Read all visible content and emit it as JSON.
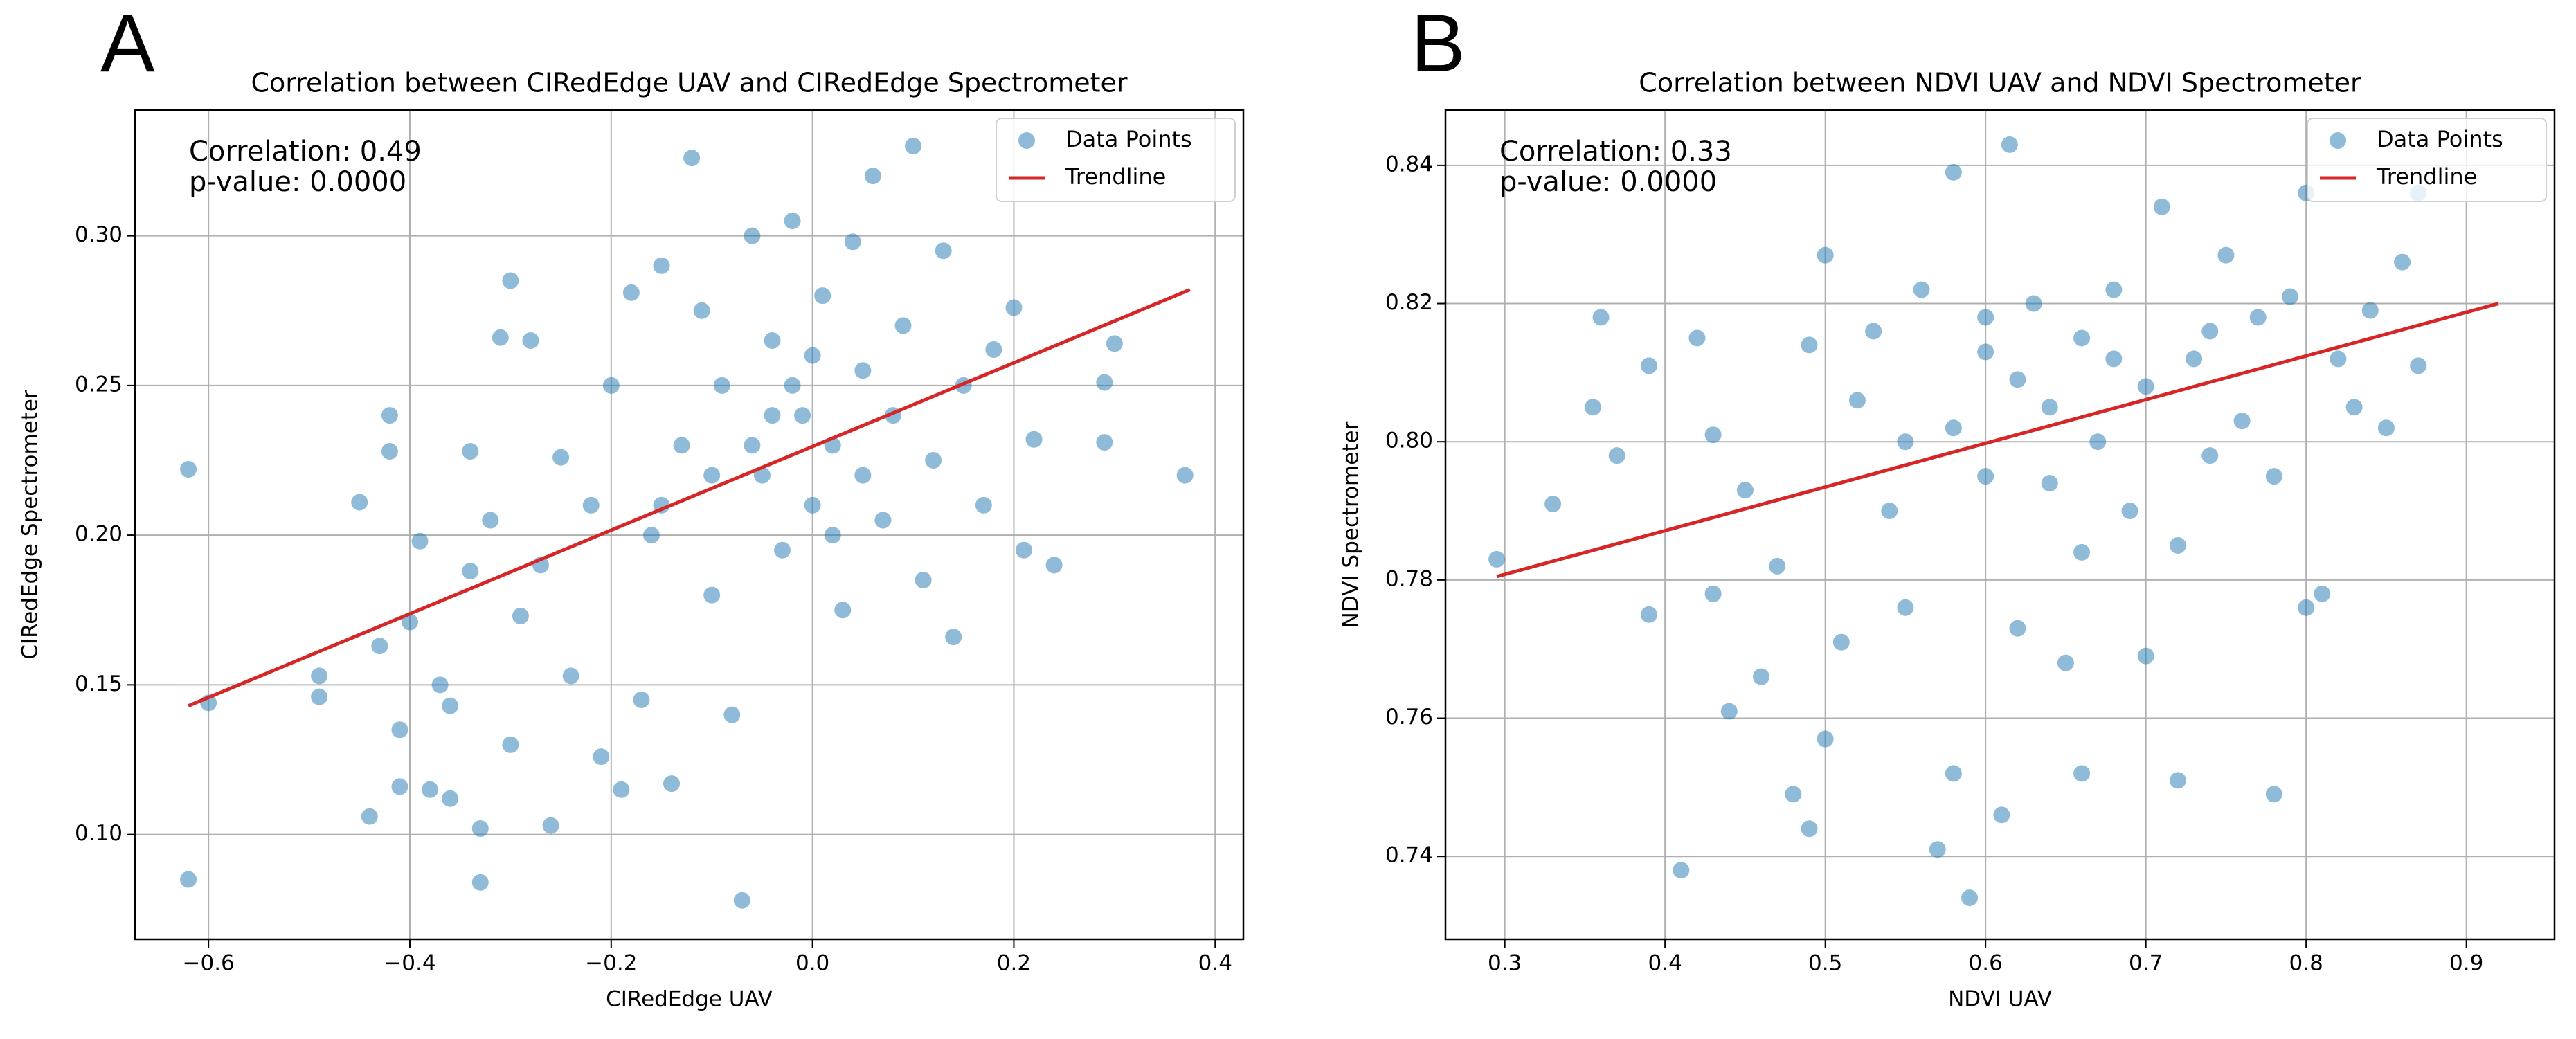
{
  "chart_data": [
    {
      "type": "scatter",
      "panel_label": "A",
      "title": "Correlation between CIRedEdge UAV and CIRedEdge Spectrometer",
      "x_label": "CIRedEdge UAV",
      "y_label": "CIRedEdge Spectrometer",
      "annotations": [
        "Correlation: 0.49",
        "p-value: 0.0000"
      ],
      "xlim": [
        -0.673,
        0.428
      ],
      "ylim": [
        0.065,
        0.342
      ],
      "xticks": [
        {
          "value": -0.6,
          "label": "−0.6"
        },
        {
          "value": -0.4,
          "label": "−0.4"
        },
        {
          "value": -0.2,
          "label": "−0.2"
        },
        {
          "value": 0,
          "label": "0.0"
        },
        0.2,
        0.4
      ],
      "yticks": [
        {
          "value": 0.1,
          "label": "0.10"
        },
        0.15,
        {
          "value": 0.2,
          "label": "0.20"
        },
        0.25,
        {
          "value": 0.3,
          "label": "0.30"
        }
      ],
      "grid": true,
      "legend": "upper right",
      "series": [
        {
          "name": "Data Points",
          "type": "scatter",
          "color": "#1f77b4",
          "x": [
            -0.62,
            -0.62,
            -0.6,
            -0.49,
            -0.49,
            -0.45,
            -0.44,
            -0.43,
            -0.42,
            -0.42,
            -0.41,
            -0.41,
            -0.4,
            -0.39,
            -0.38,
            -0.37,
            -0.36,
            -0.36,
            -0.34,
            -0.34,
            -0.33,
            -0.33,
            -0.32,
            -0.31,
            -0.3,
            -0.3,
            -0.29,
            -0.28,
            -0.27,
            -0.26,
            -0.25,
            -0.24,
            -0.22,
            -0.21,
            -0.2,
            -0.19,
            -0.18,
            -0.17,
            -0.16,
            -0.15,
            -0.14,
            -0.13,
            -0.12,
            -0.11,
            -0.1,
            -0.09,
            -0.08,
            -0.07,
            -0.06,
            -0.05,
            -0.04,
            -0.03,
            -0.02,
            -0.01,
            0.0,
            0.01,
            0.02,
            0.03,
            0.04,
            0.05,
            0.06,
            0.07,
            0.08,
            0.09,
            0.1,
            0.11,
            0.12,
            0.13,
            0.14,
            0.15,
            0.17,
            0.18,
            0.2,
            0.21,
            0.22,
            0.24,
            0.29,
            0.29,
            0.3,
            0.37,
            -0.02,
            -0.06,
            0.0,
            -0.1,
            0.05,
            -0.15,
            0.02,
            -0.04
          ],
          "values": [
            0.085,
            0.222,
            0.144,
            0.146,
            0.153,
            0.211,
            0.106,
            0.163,
            0.24,
            0.228,
            0.135,
            0.116,
            0.171,
            0.198,
            0.115,
            0.15,
            0.143,
            0.112,
            0.228,
            0.188,
            0.084,
            0.102,
            0.205,
            0.266,
            0.285,
            0.13,
            0.173,
            0.265,
            0.19,
            0.103,
            0.226,
            0.153,
            0.21,
            0.126,
            0.25,
            0.115,
            0.281,
            0.145,
            0.2,
            0.29,
            0.117,
            0.23,
            0.326,
            0.275,
            0.18,
            0.25,
            0.14,
            0.078,
            0.3,
            0.22,
            0.265,
            0.195,
            0.305,
            0.24,
            0.21,
            0.28,
            0.23,
            0.175,
            0.298,
            0.255,
            0.32,
            0.205,
            0.24,
            0.27,
            0.33,
            0.185,
            0.225,
            0.295,
            0.166,
            0.25,
            0.21,
            0.262,
            0.276,
            0.195,
            0.232,
            0.19,
            0.251,
            0.231,
            0.264,
            0.22,
            0.25,
            0.23,
            0.26,
            0.22,
            0.22,
            0.21,
            0.2,
            0.24
          ]
        },
        {
          "name": "Trendline",
          "type": "line",
          "color": "#d62728",
          "x": [
            -0.62,
            0.375
          ],
          "values": [
            0.143,
            0.282
          ]
        }
      ]
    },
    {
      "type": "scatter",
      "panel_label": "B",
      "title": "Correlation between NDVI UAV and NDVI Spectrometer",
      "x_label": "NDVI UAV",
      "y_label": "NDVI Spectrometer",
      "annotations": [
        "Correlation: 0.33",
        "p-value: 0.0000"
      ],
      "xlim": [
        0.263,
        0.955
      ],
      "ylim": [
        0.728,
        0.848
      ],
      "xticks": [
        0.3,
        0.4,
        0.5,
        0.6,
        0.7,
        0.8,
        0.9
      ],
      "yticks": [
        0.74,
        0.76,
        0.78,
        {
          "value": 0.8,
          "label": "0.80"
        },
        0.82,
        0.84
      ],
      "grid": true,
      "legend": "upper right",
      "series": [
        {
          "name": "Data Points",
          "type": "scatter",
          "color": "#1f77b4",
          "x": [
            0.295,
            0.33,
            0.355,
            0.36,
            0.37,
            0.39,
            0.39,
            0.41,
            0.42,
            0.43,
            0.43,
            0.44,
            0.45,
            0.46,
            0.47,
            0.48,
            0.49,
            0.49,
            0.5,
            0.5,
            0.51,
            0.52,
            0.53,
            0.54,
            0.55,
            0.56,
            0.57,
            0.58,
            0.58,
            0.59,
            0.6,
            0.6,
            0.61,
            0.615,
            0.62,
            0.63,
            0.64,
            0.65,
            0.66,
            0.66,
            0.67,
            0.68,
            0.69,
            0.7,
            0.7,
            0.71,
            0.72,
            0.72,
            0.73,
            0.74,
            0.75,
            0.76,
            0.77,
            0.78,
            0.78,
            0.79,
            0.8,
            0.8,
            0.81,
            0.82,
            0.83,
            0.84,
            0.85,
            0.86,
            0.87,
            0.87,
            0.62,
            0.64,
            0.58,
            0.68,
            0.55,
            0.66,
            0.74,
            0.6
          ],
          "values": [
            0.783,
            0.791,
            0.805,
            0.818,
            0.798,
            0.811,
            0.775,
            0.738,
            0.815,
            0.801,
            0.778,
            0.761,
            0.793,
            0.766,
            0.782,
            0.749,
            0.744,
            0.814,
            0.827,
            0.757,
            0.771,
            0.806,
            0.816,
            0.79,
            0.776,
            0.822,
            0.741,
            0.839,
            0.752,
            0.734,
            0.813,
            0.795,
            0.746,
            0.843,
            0.773,
            0.82,
            0.805,
            0.768,
            0.815,
            0.752,
            0.8,
            0.822,
            0.79,
            0.769,
            0.808,
            0.834,
            0.751,
            0.785,
            0.812,
            0.798,
            0.827,
            0.803,
            0.818,
            0.749,
            0.795,
            0.821,
            0.776,
            0.836,
            0.778,
            0.812,
            0.805,
            0.819,
            0.802,
            0.826,
            0.836,
            0.811,
            0.809,
            0.794,
            0.802,
            0.812,
            0.8,
            0.784,
            0.816,
            0.818
          ]
        },
        {
          "name": "Trendline",
          "type": "line",
          "color": "#d62728",
          "x": [
            0.295,
            0.92
          ],
          "values": [
            0.7805,
            0.82
          ]
        }
      ]
    }
  ]
}
